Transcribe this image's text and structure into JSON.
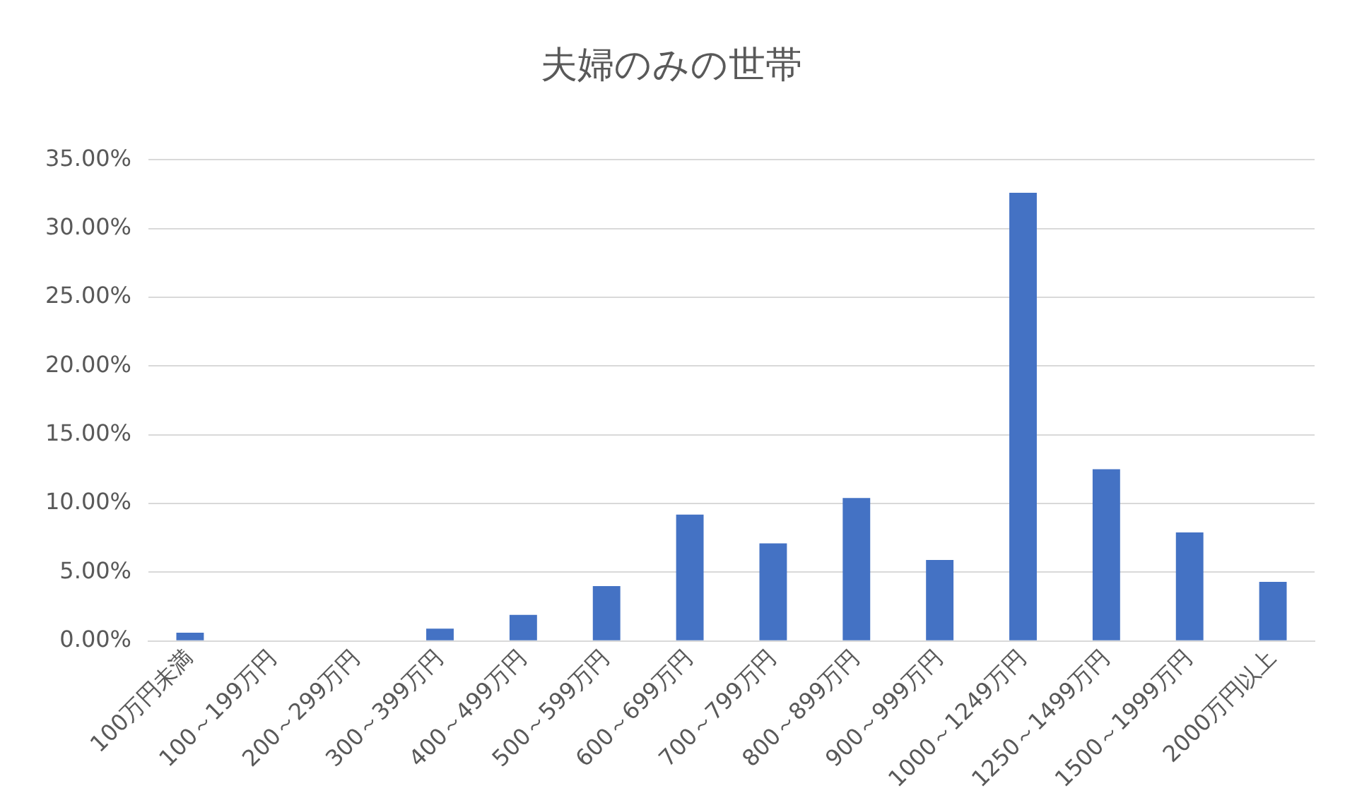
{
  "chart_data": {
    "type": "bar",
    "title": "夫婦のみの世帯",
    "categories": [
      "100万円未満",
      "100～199万円",
      "200～299万円",
      "300～399万円",
      "400～499万円",
      "500～599万円",
      "600～699万円",
      "700～799万円",
      "800～899万円",
      "900～999万円",
      "1000～1249万円",
      "1250～1499万円",
      "1500～1999万円",
      "2000万円以上"
    ],
    "values": [
      0.6,
      0,
      0,
      0.9,
      1.9,
      4.0,
      9.2,
      7.1,
      10.4,
      5.9,
      32.6,
      12.5,
      7.9,
      4.3
    ],
    "color": "#4472c4",
    "ylim": [
      0,
      35
    ],
    "yticks": [
      {
        "value": 0,
        "label": "0.00%"
      },
      {
        "value": 5,
        "label": "5.00%"
      },
      {
        "value": 10,
        "label": "10.00%"
      },
      {
        "value": 15,
        "label": "15.00%"
      },
      {
        "value": 20,
        "label": "20.00%"
      },
      {
        "value": 25,
        "label": "25.00%"
      },
      {
        "value": 30,
        "label": "30.00%"
      },
      {
        "value": 35,
        "label": "35.00%"
      }
    ],
    "grid": "y"
  }
}
